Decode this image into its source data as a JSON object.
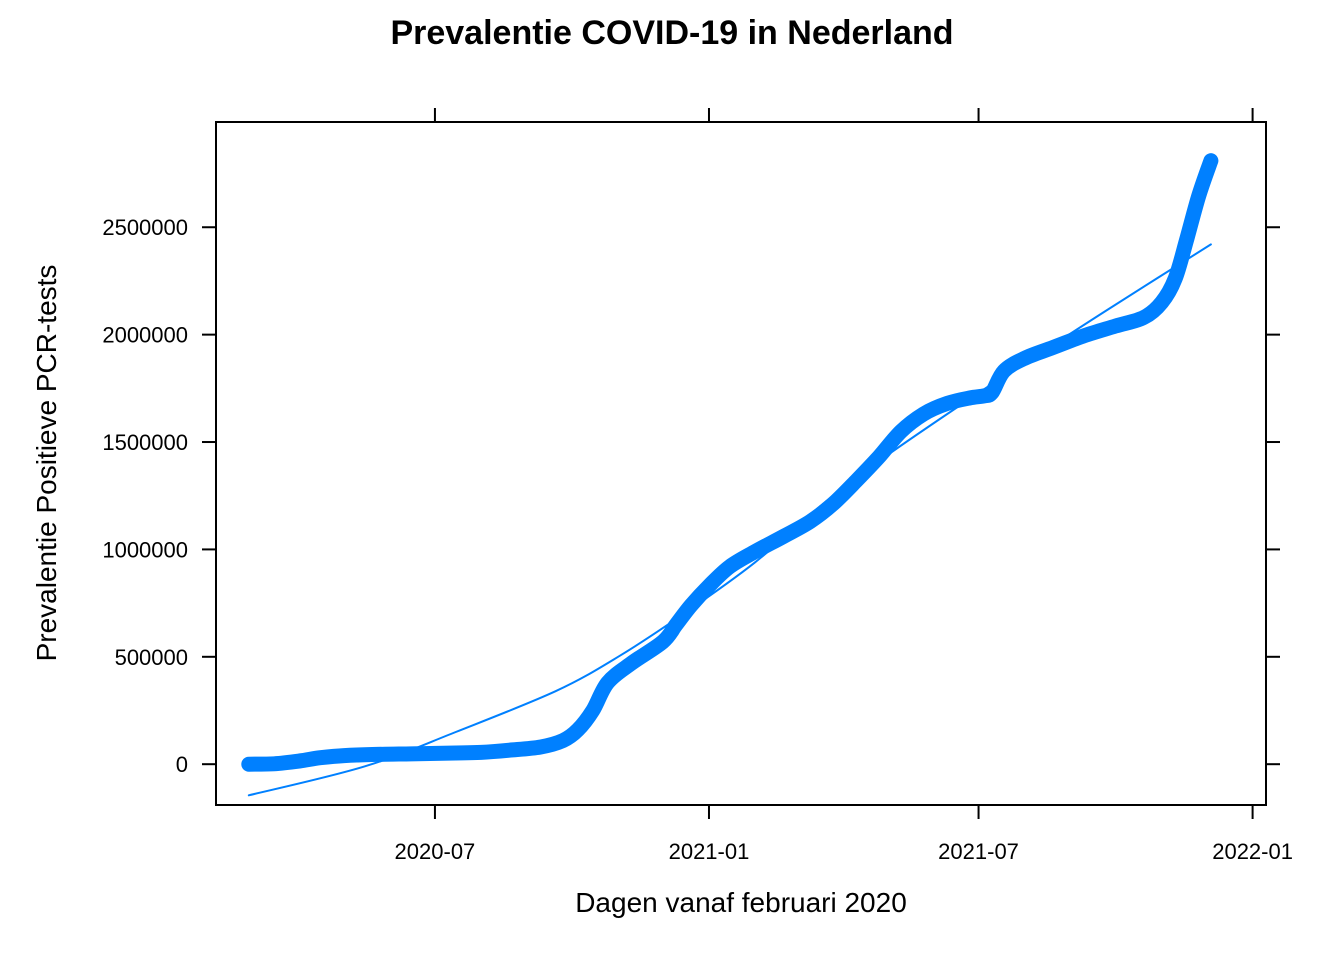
{
  "chart_data": {
    "type": "line",
    "title": "Prevalentie COVID-19 in Nederland",
    "xlabel": "Dagen vanaf februari 2020",
    "ylabel": "Prevalentie Positieve PCR-tests",
    "x_axis_type": "date",
    "xlim": [
      "2020-02-05",
      "2022-01-10"
    ],
    "ylim": [
      -190000,
      2990000
    ],
    "x_ticks": [
      {
        "date": "2020-07-01",
        "label": "2020-07"
      },
      {
        "date": "2021-01-01",
        "label": "2021-01"
      },
      {
        "date": "2021-07-01",
        "label": "2021-07"
      },
      {
        "date": "2022-01-01",
        "label": "2022-01"
      }
    ],
    "y_ticks": [
      0,
      500000,
      1000000,
      1500000,
      2000000,
      2500000
    ],
    "y_tick_labels": [
      "0",
      "500000",
      "1000000",
      "1500000",
      "2000000",
      "2500000"
    ],
    "grid": false,
    "legend": "none",
    "series_colors": {
      "data": "#0080ff",
      "trend": "#0080ff"
    },
    "series": [
      {
        "kind": "data",
        "points": [
          [
            "2020-02-27",
            0
          ],
          [
            "2020-03-15",
            2000
          ],
          [
            "2020-04-01",
            15000
          ],
          [
            "2020-04-15",
            30000
          ],
          [
            "2020-05-01",
            40000
          ],
          [
            "2020-05-20",
            45000
          ],
          [
            "2020-06-15",
            48000
          ],
          [
            "2020-07-15",
            52000
          ],
          [
            "2020-08-01",
            55000
          ],
          [
            "2020-08-20",
            65000
          ],
          [
            "2020-09-10",
            80000
          ],
          [
            "2020-09-25",
            110000
          ],
          [
            "2020-10-05",
            160000
          ],
          [
            "2020-10-15",
            250000
          ],
          [
            "2020-10-25",
            380000
          ],
          [
            "2020-11-10",
            470000
          ],
          [
            "2020-12-01",
            570000
          ],
          [
            "2020-12-10",
            650000
          ],
          [
            "2020-12-20",
            740000
          ],
          [
            "2021-01-01",
            830000
          ],
          [
            "2021-01-15",
            920000
          ],
          [
            "2021-02-01",
            990000
          ],
          [
            "2021-02-20",
            1060000
          ],
          [
            "2021-03-10",
            1130000
          ],
          [
            "2021-03-25",
            1210000
          ],
          [
            "2021-04-10",
            1320000
          ],
          [
            "2021-04-25",
            1430000
          ],
          [
            "2021-05-10",
            1550000
          ],
          [
            "2021-05-25",
            1630000
          ],
          [
            "2021-06-10",
            1680000
          ],
          [
            "2021-06-25",
            1705000
          ],
          [
            "2021-07-05",
            1715000
          ],
          [
            "2021-07-10",
            1730000
          ],
          [
            "2021-07-18",
            1830000
          ],
          [
            "2021-08-01",
            1890000
          ],
          [
            "2021-08-20",
            1940000
          ],
          [
            "2021-09-10",
            1995000
          ],
          [
            "2021-10-01",
            2040000
          ],
          [
            "2021-10-20",
            2080000
          ],
          [
            "2021-11-01",
            2150000
          ],
          [
            "2021-11-10",
            2260000
          ],
          [
            "2021-11-18",
            2450000
          ],
          [
            "2021-11-26",
            2650000
          ],
          [
            "2021-12-04",
            2810000
          ]
        ]
      },
      {
        "kind": "trend",
        "points": [
          [
            "2020-02-27",
            -145000
          ],
          [
            "2020-05-15",
            -10000
          ],
          [
            "2020-07-15",
            150000
          ],
          [
            "2020-09-20",
            340000
          ],
          [
            "2020-11-01",
            500000
          ],
          [
            "2020-12-15",
            700000
          ],
          [
            "2021-02-01",
            940000
          ],
          [
            "2021-03-20",
            1220000
          ],
          [
            "2021-05-01",
            1440000
          ],
          [
            "2021-07-10",
            1770000
          ],
          [
            "2021-08-15",
            1930000
          ],
          [
            "2021-10-01",
            2140000
          ],
          [
            "2021-12-04",
            2420000
          ]
        ]
      }
    ]
  }
}
